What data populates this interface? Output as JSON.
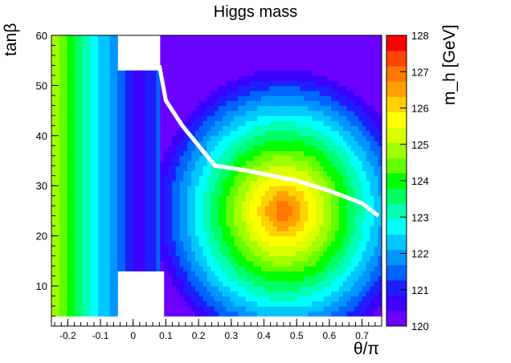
{
  "chart_data": {
    "type": "heatmap",
    "title": "Higgs mass",
    "xlabel": "θ/π",
    "ylabel": "tanβ",
    "zlabel": "m_h [GeV]",
    "xlim": [
      -0.25,
      0.76
    ],
    "ylim": [
      2,
      60
    ],
    "zlim": [
      120,
      128
    ],
    "x_ticks": [
      -0.2,
      -0.1,
      0,
      0.1,
      0.2,
      0.3,
      0.4,
      0.5,
      0.6,
      0.7
    ],
    "x_tick_labels": [
      "-0.2",
      "-0.1",
      "0",
      "0.1",
      "0.2",
      "0.3",
      "0.4",
      "0.5",
      "0.6",
      "0.7"
    ],
    "y_ticks": [
      10,
      20,
      30,
      40,
      50,
      60
    ],
    "y_tick_labels": [
      "10",
      "20",
      "30",
      "40",
      "50",
      "60"
    ],
    "z_ticks": [
      120,
      121,
      122,
      123,
      124,
      125,
      126,
      127,
      128
    ],
    "z_tick_labels": [
      "120",
      "121",
      "122",
      "123",
      "124",
      "125",
      "126",
      "127",
      "128"
    ],
    "palette": [
      "#6a00ff",
      "#3c00ff",
      "#1e1eff",
      "#0064ff",
      "#0096ff",
      "#00c8ff",
      "#00ffff",
      "#00ffb4",
      "#00ff64",
      "#00ff00",
      "#64ff00",
      "#a0ff00",
      "#dcff00",
      "#ffff00",
      "#ffd200",
      "#ffa000",
      "#ff7800",
      "#ff4600",
      "#ff0000"
    ],
    "grid": false,
    "annotations": [
      {
        "type": "boundary-line",
        "color": "#ffffff",
        "description": "white step curve from (0.08, 54) through (0.25, 34) to (0.75, 24)"
      }
    ],
    "excluded_regions": [
      {
        "description": "white region near top-center",
        "x_range": [
          -0.05,
          0.08
        ],
        "y_range": [
          53,
          60
        ]
      },
      {
        "description": "white region near bottom-center",
        "x_range": [
          -0.05,
          0.1
        ],
        "y_range": [
          2,
          13
        ]
      },
      {
        "description": "white band along bottom",
        "x_range": [
          -0.25,
          0.76
        ],
        "y_range": [
          2,
          4
        ]
      }
    ],
    "model": "m_h = 120 + 7.2*(1-r) with r^2 = ((θ/π-0.46)/0.42)^2 + ((tanβ-25)/30)^2 on right lobe; left lobe m_h = 120.5 + 4.5*|θ/π-0.02|/0.27 for θ/π < 0.08"
  }
}
